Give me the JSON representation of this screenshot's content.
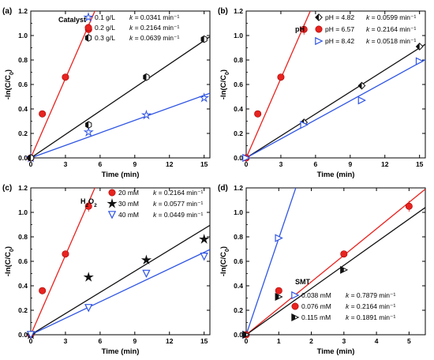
{
  "chart_data": [
    {
      "type": "scatter",
      "panel_label": "(a)",
      "xlabel": "Time (min)",
      "ylabel": "-ln(C/C0)",
      "xlim": [
        0,
        15.5
      ],
      "ylim": [
        0,
        1.2
      ],
      "x_ticks": [
        0,
        3,
        6,
        9,
        12,
        15
      ],
      "y_ticks": [
        0.0,
        0.2,
        0.4,
        0.6,
        0.8,
        1.0,
        1.2
      ],
      "legend_title": "Catalyst",
      "legend_position": "top-right",
      "series": [
        {
          "name": "0.1 g/L",
          "k_label": "k = 0.0341 min⁻¹",
          "marker": "star",
          "color": "#2f55e4",
          "x": [
            0,
            5,
            10,
            15
          ],
          "y": [
            0,
            0.21,
            0.35,
            0.49
          ],
          "fit_slope": 0.0341
        },
        {
          "name": "0.2 g/L",
          "k_label": "k = 0.2164 min⁻¹",
          "marker": "circle",
          "color": "#e8231f",
          "x": [
            0,
            1,
            3,
            5
          ],
          "y": [
            0,
            0.36,
            0.66,
            1.05
          ],
          "fit_slope": 0.2164
        },
        {
          "name": "0.3 g/L",
          "k_label": "k = 0.0639 min⁻¹",
          "marker": "hexagon",
          "color": "#111111",
          "x": [
            0,
            5,
            10,
            15
          ],
          "y": [
            0,
            0.27,
            0.66,
            0.97
          ],
          "fit_slope": 0.0639
        }
      ]
    },
    {
      "type": "scatter",
      "panel_label": "(b)",
      "xlabel": "Time (min)",
      "ylabel": "-ln(C/C0)",
      "xlim": [
        0,
        15.5
      ],
      "ylim": [
        0,
        1.2
      ],
      "x_ticks": [
        0,
        3,
        6,
        9,
        12,
        15
      ],
      "y_ticks": [
        0.0,
        0.2,
        0.4,
        0.6,
        0.8,
        1.0,
        1.2
      ],
      "legend_title": "pH",
      "legend_position": "top-right",
      "series": [
        {
          "name": "pH = 4.82",
          "k_label": "k = 0.0599 min⁻¹",
          "marker": "diamond",
          "color": "#111111",
          "x": [
            0,
            5,
            10,
            15
          ],
          "y": [
            0,
            0.29,
            0.59,
            0.91
          ],
          "fit_slope": 0.0599
        },
        {
          "name": "pH = 6.57",
          "k_label": "k = 0.2164 min⁻¹",
          "marker": "circle",
          "color": "#e8231f",
          "x": [
            0,
            1,
            3,
            5
          ],
          "y": [
            0,
            0.36,
            0.66,
            1.05
          ],
          "fit_slope": 0.2164
        },
        {
          "name": "pH = 8.42",
          "k_label": "k = 0.0518 min⁻¹",
          "marker": "triangle-right",
          "color": "#2f55e4",
          "x": [
            0,
            5,
            10,
            15
          ],
          "y": [
            0,
            0.27,
            0.47,
            0.79
          ],
          "fit_slope": 0.0518
        }
      ]
    },
    {
      "type": "scatter",
      "panel_label": "(c)",
      "xlabel": "Time (min)",
      "ylabel": "-ln(C/C0)",
      "xlim": [
        0,
        15.5
      ],
      "ylim": [
        0,
        1.2
      ],
      "x_ticks": [
        0,
        3,
        6,
        9,
        12,
        15
      ],
      "y_ticks": [
        0.0,
        0.2,
        0.4,
        0.6,
        0.8,
        1.0,
        1.2
      ],
      "legend_title": "H2O2",
      "legend_position": "top-right",
      "series": [
        {
          "name": "20 mM",
          "k_label": "k = 0.2164 min⁻¹",
          "marker": "circle",
          "color": "#e8231f",
          "x": [
            0,
            1,
            3,
            5
          ],
          "y": [
            0,
            0.36,
            0.66,
            1.05
          ],
          "fit_slope": 0.2164
        },
        {
          "name": "30 mM",
          "k_label": "k = 0.0577 min⁻¹",
          "marker": "star",
          "color": "#111111",
          "x": [
            0,
            5,
            10,
            15
          ],
          "y": [
            0,
            0.47,
            0.61,
            0.78
          ],
          "fit_slope": 0.0577
        },
        {
          "name": "40 mM",
          "k_label": "k = 0.0449 min⁻¹",
          "marker": "triangle-down",
          "color": "#2f55e4",
          "x": [
            0,
            5,
            10,
            15
          ],
          "y": [
            0,
            0.22,
            0.5,
            0.64
          ],
          "fit_slope": 0.0449
        }
      ]
    },
    {
      "type": "scatter",
      "panel_label": "(d)",
      "xlabel": "Time (min)",
      "ylabel": "-ln(C/C0)",
      "xlim": [
        0,
        5.5
      ],
      "ylim": [
        0,
        1.2
      ],
      "x_ticks": [
        0,
        1,
        2,
        3,
        4,
        5
      ],
      "y_ticks": [
        0.0,
        0.2,
        0.4,
        0.6,
        0.8,
        1.0,
        1.2
      ],
      "legend_title": "SMT",
      "legend_position": "bottom-right",
      "series": [
        {
          "name": "0.038 mM",
          "k_label": "k = 0.7879 min⁻¹",
          "marker": "triangle-right",
          "color": "#2f55e4",
          "x": [
            0,
            1
          ],
          "y": [
            0,
            0.79
          ],
          "fit_slope": 0.7879
        },
        {
          "name": "0.076 mM",
          "k_label": "k = 0.2164 min⁻¹",
          "marker": "circle",
          "color": "#e8231f",
          "x": [
            0,
            1,
            3,
            5
          ],
          "y": [
            0,
            0.36,
            0.66,
            1.05
          ],
          "fit_slope": 0.2164
        },
        {
          "name": "0.115 mM",
          "k_label": "k = 0.1891 min⁻¹",
          "marker": "triangle-right-half",
          "color": "#111111",
          "x": [
            0,
            1,
            3
          ],
          "y": [
            0,
            0.31,
            0.53
          ],
          "fit_slope": 0.1891
        }
      ]
    }
  ]
}
